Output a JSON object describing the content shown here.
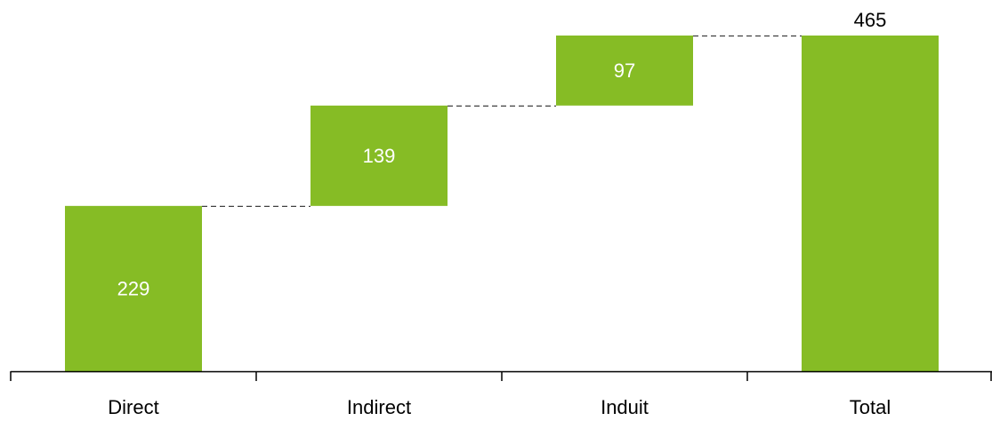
{
  "chart_data": {
    "type": "waterfall",
    "categories": [
      "Direct",
      "Indirect",
      "Induit",
      "Total"
    ],
    "values": [
      229,
      139,
      97,
      465
    ],
    "is_total": [
      false,
      false,
      false,
      true
    ],
    "data_labels": [
      "229",
      "139",
      "97",
      "465"
    ],
    "title": "",
    "xlabel": "",
    "ylabel": "",
    "ylim": [
      0,
      465
    ],
    "grid": false,
    "legend": "none",
    "connector_lines": "dashed"
  },
  "colors": {
    "bar": "#86BC25",
    "axis": "#000000",
    "connector": "#404040",
    "label_inside": "#ffffff",
    "label_outside": "#000000"
  }
}
